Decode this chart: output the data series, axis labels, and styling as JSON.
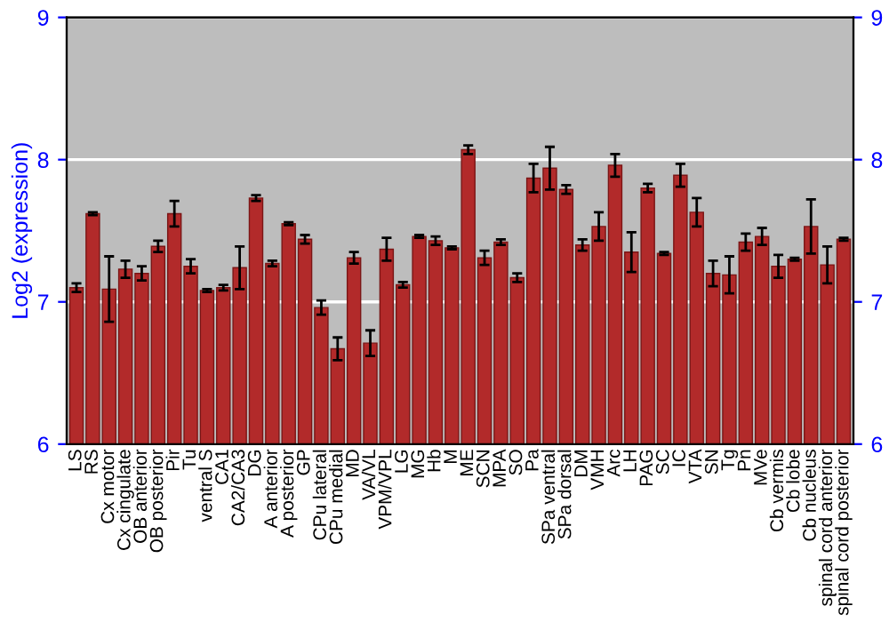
{
  "chart_data": {
    "type": "bar",
    "ylabel": "Log2 (expression)",
    "categories": [
      "LS",
      "RS",
      "Cx motor",
      "Cx cingulate",
      "OB anterior",
      "OB posterior",
      "Pir",
      "Tu",
      "ventral S",
      "CA1",
      "CA2/CA3",
      "DG",
      "A anterior",
      "A posterior",
      "GP",
      "CPu lateral",
      "CPu medial",
      "MD",
      "VA/VL",
      "VPM/VPL",
      "LG",
      "MG",
      "Hb",
      "M",
      "ME",
      "SCN",
      "MPA",
      "SO",
      "Pa",
      "SPa ventral",
      "SPa dorsal",
      "DM",
      "VMH",
      "Arc",
      "LH",
      "PAG",
      "SC",
      "IC",
      "VTA",
      "SN",
      "Tg",
      "Pn",
      "MVe",
      "Cb vermis",
      "Cb lobe",
      "Cb nucleus",
      "spinal cord anterior",
      "spinal cord posterior"
    ],
    "values": [
      7.1,
      7.62,
      7.09,
      7.23,
      7.2,
      7.39,
      7.62,
      7.25,
      7.08,
      7.1,
      7.24,
      7.73,
      7.27,
      7.55,
      7.44,
      6.96,
      6.67,
      7.31,
      6.71,
      7.37,
      7.12,
      7.46,
      7.43,
      7.38,
      8.07,
      7.31,
      7.42,
      7.17,
      7.87,
      7.94,
      7.79,
      7.4,
      7.53,
      7.96,
      7.35,
      7.8,
      7.34,
      7.89,
      7.63,
      7.2,
      7.19,
      7.42,
      7.46,
      7.25,
      7.3,
      7.53,
      7.26,
      7.44
    ],
    "errors": [
      0.03,
      0.01,
      0.23,
      0.06,
      0.05,
      0.04,
      0.09,
      0.05,
      0.01,
      0.02,
      0.15,
      0.02,
      0.02,
      0.01,
      0.03,
      0.05,
      0.08,
      0.04,
      0.09,
      0.08,
      0.02,
      0.01,
      0.03,
      0.01,
      0.03,
      0.05,
      0.02,
      0.03,
      0.1,
      0.15,
      0.03,
      0.04,
      0.1,
      0.08,
      0.14,
      0.03,
      0.01,
      0.08,
      0.1,
      0.09,
      0.13,
      0.06,
      0.06,
      0.08,
      0.01,
      0.19,
      0.13,
      0.01
    ],
    "color": "#b22a2a",
    "ylim": [
      6,
      9
    ],
    "yticks": [
      6,
      7,
      8,
      9
    ],
    "y2lim": [
      6,
      9
    ],
    "y2ticks": [
      6,
      7,
      8,
      9
    ],
    "grid": "y"
  }
}
